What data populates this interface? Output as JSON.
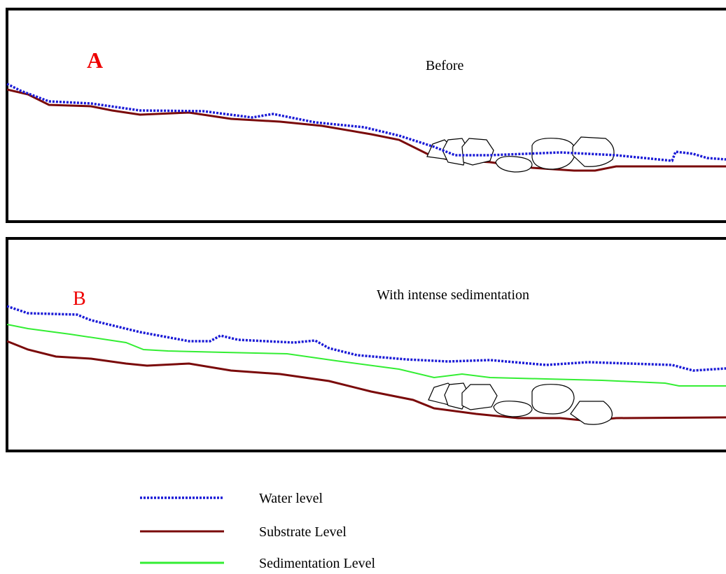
{
  "panels": [
    {
      "label": "A",
      "title": "Before"
    },
    {
      "label": "B",
      "title": "With intense sedimentation"
    }
  ],
  "legend": [
    "Water level",
    "Substrate Level",
    "Sedimentation Level"
  ]
}
